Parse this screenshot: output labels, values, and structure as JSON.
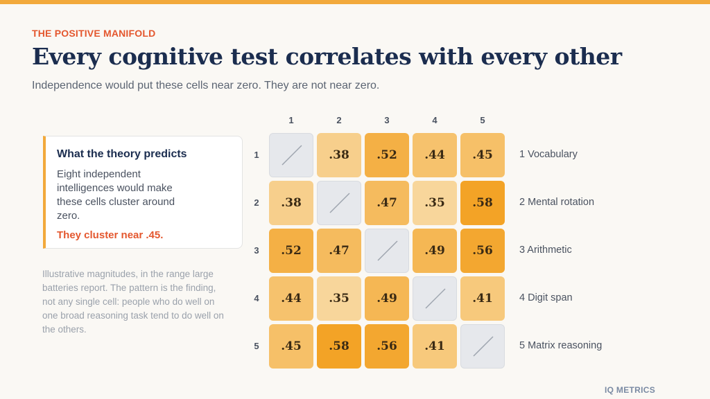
{
  "header": {
    "eyebrow": "THE POSITIVE MANIFOLD",
    "title": "Every cognitive test correlates with every other",
    "subtitle": "Independence would put these cells near zero. They are not near zero."
  },
  "card": {
    "title": "What the theory predicts",
    "body": "Eight independent intelligences would make these cells cluster around zero.",
    "emphasis": "They cluster near .45."
  },
  "note": "Illustrative magnitudes, in the range large batteries report. The pattern is the finding, not any single cell: people who do well on one broad reasoning task tend to do well on the others.",
  "brand": "IQ METRICS",
  "colors": {
    "accent": "#f2a93b",
    "highlight": "#e4572e",
    "title": "#1b2d4f",
    "diagonal": "#e6e8ec"
  },
  "matrix": {
    "col_headers": [
      "1",
      "2",
      "3",
      "4",
      "5"
    ],
    "row_headers": [
      "1",
      "2",
      "3",
      "4",
      "5"
    ],
    "row_labels": [
      "1 Vocabulary",
      "2 Mental rotation",
      "3 Arithmetic",
      "4 Digit span",
      "5 Matrix reasoning"
    ],
    "labels": [
      [
        "",
        ".38",
        ".52",
        ".44",
        ".45"
      ],
      [
        ".38",
        "",
        ".47",
        ".35",
        ".58"
      ],
      [
        ".52",
        ".47",
        "",
        ".49",
        ".56"
      ],
      [
        ".44",
        ".35",
        ".49",
        "",
        ".41"
      ],
      [
        ".45",
        ".58",
        ".56",
        ".41",
        ""
      ]
    ],
    "values": [
      [
        null,
        0.38,
        0.52,
        0.44,
        0.45
      ],
      [
        0.38,
        null,
        0.47,
        0.35,
        0.58
      ],
      [
        0.52,
        0.47,
        null,
        0.49,
        0.56
      ],
      [
        0.44,
        0.35,
        0.49,
        null,
        0.41
      ],
      [
        0.45,
        0.58,
        0.56,
        0.41,
        null
      ]
    ],
    "diagonal_icon": "slash-icon"
  }
}
